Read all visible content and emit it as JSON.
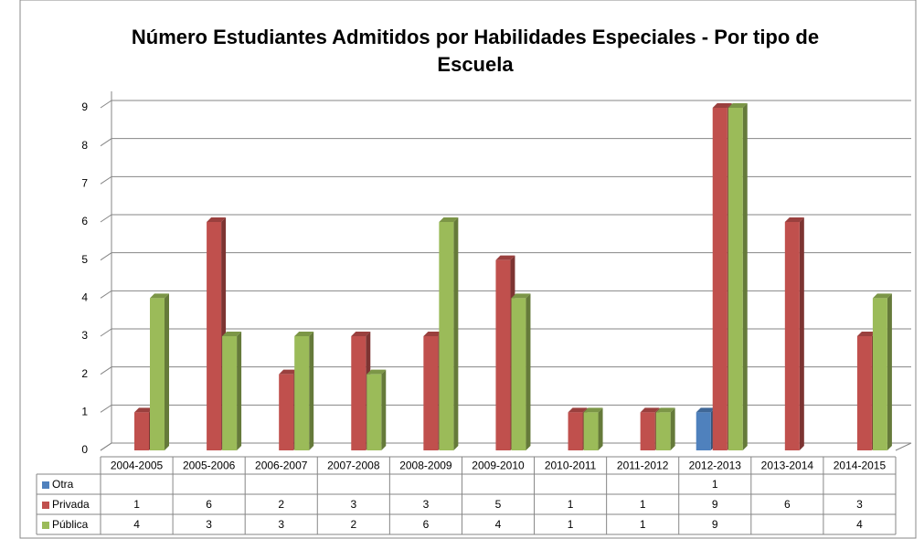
{
  "chart_data": {
    "type": "bar3d",
    "title": "Número Estudiantes Admitidos por Habilidades Especiales - Por tipo de Escuela",
    "categories": [
      "2004-2005",
      "2005-2006",
      "2006-2007",
      "2007-2008",
      "2008-2009",
      "2009-2010",
      "2010-2011",
      "2011-2012",
      "2012-2013",
      "2013-2014",
      "2014-2015"
    ],
    "series": [
      {
        "name": "Otra",
        "color": "#4f81bd",
        "values": [
          null,
          null,
          null,
          null,
          null,
          null,
          null,
          null,
          1,
          null,
          null
        ]
      },
      {
        "name": "Privada",
        "color": "#c0504d",
        "values": [
          1,
          6,
          2,
          3,
          3,
          5,
          1,
          1,
          9,
          6,
          3
        ]
      },
      {
        "name": "Pública",
        "color": "#9bbb59",
        "values": [
          4,
          3,
          3,
          2,
          6,
          4,
          1,
          1,
          9,
          null,
          4
        ]
      }
    ],
    "ylim": [
      0,
      9
    ],
    "yticks": [
      0,
      1,
      2,
      3,
      4,
      5,
      6,
      7,
      8,
      9
    ],
    "grid": true
  }
}
